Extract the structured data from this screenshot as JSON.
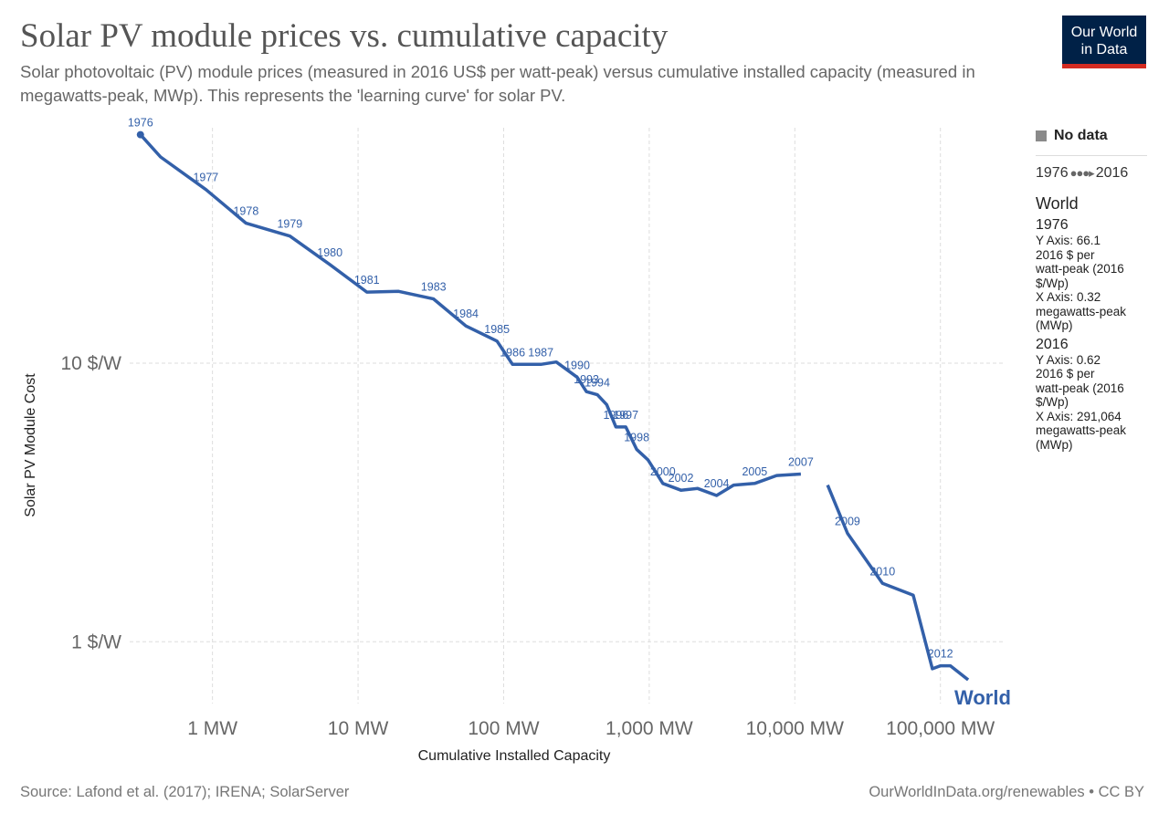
{
  "header": {
    "title": "Solar PV module prices vs. cumulative capacity",
    "subtitle": "Solar photovoltaic (PV) module prices (measured in 2016 US$ per watt-peak) versus cumulative installed capacity (measured in megawatts-peak, MWp). This represents the 'learning curve' for solar PV."
  },
  "logo": {
    "line1": "Our World",
    "line2": "in Data",
    "bg_color": "#002147",
    "bar_color": "#d42b21"
  },
  "sidebar": {
    "no_data": "No data",
    "timeline_start": "1976",
    "timeline_end": "2016",
    "entity": "World",
    "tooltip": [
      {
        "year": "1976",
        "lines": [
          "Y Axis: 66.1",
          "2016 $ per",
          "watt-peak (2016",
          "$/Wp)",
          "X Axis: 0.32",
          "megawatts-peak",
          "(MWp)"
        ]
      },
      {
        "year": "2016",
        "lines": [
          "Y Axis: 0.62",
          "2016 $ per",
          "watt-peak (2016",
          "$/Wp)",
          "X Axis: 291,064",
          "megawatts-peak",
          "(MWp)"
        ]
      }
    ]
  },
  "footer": {
    "source": "Source: Lafond et al. (2017); IRENA; SolarServer",
    "credit": "OurWorldInData.org/renewables • CC BY"
  },
  "chart_data": {
    "type": "line",
    "xscale": "log",
    "yscale": "log",
    "xlabel": "Cumulative Installed Capacity",
    "ylabel": "Solar PV Module Cost",
    "x_unit": "MW",
    "y_unit": "$/W",
    "xlim": [
      0.27,
      280000
    ],
    "ylim": [
      0.6,
      70
    ],
    "x_ticks": [
      {
        "value": 1,
        "label": "1 MW"
      },
      {
        "value": 10,
        "label": "10 MW"
      },
      {
        "value": 100,
        "label": "100 MW"
      },
      {
        "value": 1000,
        "label": "1,000 MW"
      },
      {
        "value": 10000,
        "label": "10,000 MW"
      },
      {
        "value": 100000,
        "label": "100,000 MW"
      }
    ],
    "y_ticks": [
      {
        "value": 1,
        "label": "1 $/W"
      },
      {
        "value": 10,
        "label": "10 $/W"
      }
    ],
    "grid": true,
    "color": "#3360a9",
    "series": [
      {
        "name": "World",
        "points": [
          {
            "year": "1976",
            "x": 0.32,
            "y": 66.1
          },
          {
            "year": "",
            "x": 0.44,
            "y": 55.0
          },
          {
            "year": "1977",
            "x": 0.9,
            "y": 42.0
          },
          {
            "year": "1978",
            "x": 1.7,
            "y": 31.8
          },
          {
            "year": "1979",
            "x": 3.4,
            "y": 28.6
          },
          {
            "year": "1980",
            "x": 6.4,
            "y": 22.6
          },
          {
            "year": "1981",
            "x": 11.5,
            "y": 18.0
          },
          {
            "year": "",
            "x": 19,
            "y": 18.1
          },
          {
            "year": "1983",
            "x": 33,
            "y": 17.0
          },
          {
            "year": "1984",
            "x": 55,
            "y": 13.6
          },
          {
            "year": "1985",
            "x": 90,
            "y": 12.0
          },
          {
            "year": "1986",
            "x": 115,
            "y": 9.9
          },
          {
            "year": "1987",
            "x": 180,
            "y": 9.9
          },
          {
            "year": "",
            "x": 230,
            "y": 10.1
          },
          {
            "year": "1990",
            "x": 320,
            "y": 8.9
          },
          {
            "year": "1993",
            "x": 370,
            "y": 7.9
          },
          {
            "year": "1994",
            "x": 440,
            "y": 7.7
          },
          {
            "year": "",
            "x": 510,
            "y": 7.1
          },
          {
            "year": "1996",
            "x": 590,
            "y": 5.9
          },
          {
            "year": "1997",
            "x": 690,
            "y": 5.9
          },
          {
            "year": "1998",
            "x": 820,
            "y": 4.9
          },
          {
            "year": "",
            "x": 980,
            "y": 4.5
          },
          {
            "year": "2000",
            "x": 1240,
            "y": 3.7
          },
          {
            "year": "2002",
            "x": 1650,
            "y": 3.5
          },
          {
            "year": "",
            "x": 2150,
            "y": 3.55
          },
          {
            "year": "2004",
            "x": 2900,
            "y": 3.35
          },
          {
            "year": "",
            "x": 3800,
            "y": 3.65
          },
          {
            "year": "2005",
            "x": 5300,
            "y": 3.7
          },
          {
            "year": "",
            "x": 7500,
            "y": 3.95
          },
          {
            "year": "2007",
            "x": 11000,
            "y": 4.0
          }
        ]
      },
      {
        "name": "World",
        "points": [
          {
            "year": "",
            "x": 16800,
            "y": 3.65
          },
          {
            "year": "2009",
            "x": 23000,
            "y": 2.45
          },
          {
            "year": "2010",
            "x": 40000,
            "y": 1.62
          },
          {
            "year": "",
            "x": 65000,
            "y": 1.47
          },
          {
            "year": "",
            "x": 88000,
            "y": 0.8
          },
          {
            "year": "2012",
            "x": 100000,
            "y": 0.82
          },
          {
            "year": "",
            "x": 117000,
            "y": 0.82
          },
          {
            "year": "",
            "x": 155000,
            "y": 0.73
          }
        ]
      }
    ]
  }
}
